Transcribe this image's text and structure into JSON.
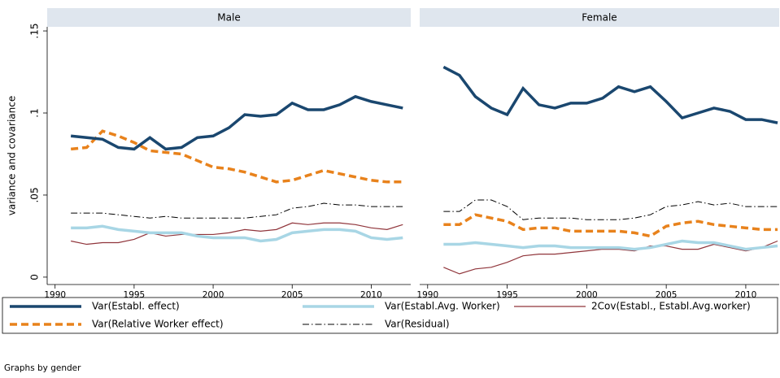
{
  "chart_data": [
    {
      "type": "line",
      "title": "Male",
      "y_label": "variance and covariance",
      "x": [
        1991,
        1992,
        1993,
        1994,
        1995,
        1996,
        1997,
        1998,
        1999,
        2000,
        2001,
        2002,
        2003,
        2004,
        2005,
        2006,
        2007,
        2008,
        2009,
        2010,
        2011,
        2012
      ],
      "xlim": [
        1989.5,
        2012.5
      ],
      "xticks": [
        1990,
        1995,
        2000,
        2005,
        2010
      ],
      "ylim": [
        -0.0045,
        0.1525
      ],
      "yticks": [
        0,
        {
          "value": 0.05,
          "label": ".05"
        },
        {
          "value": 0.1,
          "label": ".1"
        },
        {
          "value": 0.15,
          "label": ".15"
        }
      ],
      "grid": false,
      "series": [
        {
          "name": "Var(Establ. effect)",
          "color": "#1a476f",
          "values": [
            0.086,
            0.085,
            0.084,
            0.079,
            0.078,
            0.085,
            0.078,
            0.079,
            0.085,
            0.086,
            0.091,
            0.099,
            0.098,
            0.099,
            0.106,
            0.102,
            0.102,
            0.105,
            0.11,
            0.107,
            0.105,
            0.103
          ]
        },
        {
          "name": "Var(Establ.Avg. Worker)",
          "color": "#a8d6e5",
          "values": [
            0.03,
            0.03,
            0.031,
            0.029,
            0.028,
            0.027,
            0.027,
            0.027,
            0.025,
            0.024,
            0.024,
            0.024,
            0.022,
            0.023,
            0.027,
            0.028,
            0.029,
            0.029,
            0.028,
            0.024,
            0.023,
            0.024
          ]
        },
        {
          "name": "2Cov(Establ., Establ.Avg.worker)",
          "color": "#90353b",
          "values": [
            0.022,
            0.02,
            0.021,
            0.021,
            0.023,
            0.027,
            0.025,
            0.026,
            0.026,
            0.026,
            0.027,
            0.029,
            0.028,
            0.029,
            0.033,
            0.032,
            0.033,
            0.033,
            0.032,
            0.03,
            0.029,
            0.032
          ]
        },
        {
          "name": "Var(Relative Worker effect)",
          "color": "#e8821c",
          "values": [
            0.078,
            0.079,
            0.089,
            0.086,
            0.082,
            0.077,
            0.076,
            0.075,
            0.071,
            0.067,
            0.066,
            0.064,
            0.061,
            0.058,
            0.059,
            0.062,
            0.065,
            0.063,
            0.061,
            0.059,
            0.058,
            0.058
          ]
        },
        {
          "name": "Var(Residual)",
          "color": "#000000",
          "values": [
            0.039,
            0.039,
            0.039,
            0.038,
            0.037,
            0.036,
            0.037,
            0.036,
            0.036,
            0.036,
            0.036,
            0.036,
            0.037,
            0.038,
            0.042,
            0.043,
            0.045,
            0.044,
            0.044,
            0.043,
            0.043,
            0.043
          ]
        }
      ]
    },
    {
      "type": "line",
      "title": "Female",
      "x": [
        1991,
        1992,
        1993,
        1994,
        1995,
        1996,
        1997,
        1998,
        1999,
        2000,
        2001,
        2002,
        2003,
        2004,
        2005,
        2006,
        2007,
        2008,
        2009,
        2010,
        2011,
        2012
      ],
      "xlim": [
        1989.5,
        2012.1
      ],
      "xticks": [
        1990,
        1995,
        2000,
        2005,
        2010
      ],
      "ylim": [
        -0.0045,
        0.1525
      ],
      "grid": false,
      "series": [
        {
          "name": "Var(Establ. effect)",
          "color": "#1a476f",
          "values": [
            0.128,
            0.123,
            0.11,
            0.103,
            0.099,
            0.115,
            0.105,
            0.103,
            0.106,
            0.106,
            0.109,
            0.116,
            0.113,
            0.116,
            0.107,
            0.097,
            0.1,
            0.103,
            0.101,
            0.096,
            0.096,
            0.094
          ]
        },
        {
          "name": "Var(Establ.Avg. Worker)",
          "color": "#a8d6e5",
          "values": [
            0.02,
            0.02,
            0.021,
            0.02,
            0.019,
            0.018,
            0.019,
            0.019,
            0.018,
            0.018,
            0.018,
            0.018,
            0.017,
            0.018,
            0.02,
            0.022,
            0.021,
            0.021,
            0.019,
            0.017,
            0.018,
            0.019
          ]
        },
        {
          "name": "2Cov(Establ., Establ.Avg.worker)",
          "color": "#90353b",
          "values": [
            0.006,
            0.002,
            0.005,
            0.006,
            0.009,
            0.013,
            0.014,
            0.014,
            0.015,
            0.016,
            0.017,
            0.017,
            0.016,
            0.019,
            0.019,
            0.017,
            0.017,
            0.02,
            0.018,
            0.016,
            0.018,
            0.022
          ]
        },
        {
          "name": "Var(Relative Worker effect)",
          "color": "#e8821c",
          "values": [
            0.032,
            0.032,
            0.038,
            0.036,
            0.034,
            0.029,
            0.03,
            0.03,
            0.028,
            0.028,
            0.028,
            0.028,
            0.027,
            0.025,
            0.031,
            0.033,
            0.034,
            0.032,
            0.031,
            0.03,
            0.029,
            0.029
          ]
        },
        {
          "name": "Var(Residual)",
          "color": "#000000",
          "values": [
            0.04,
            0.04,
            0.047,
            0.047,
            0.043,
            0.035,
            0.036,
            0.036,
            0.036,
            0.035,
            0.035,
            0.035,
            0.036,
            0.038,
            0.043,
            0.044,
            0.046,
            0.044,
            0.045,
            0.043,
            0.043,
            0.043
          ]
        }
      ]
    }
  ],
  "note": "Graphs by gender"
}
